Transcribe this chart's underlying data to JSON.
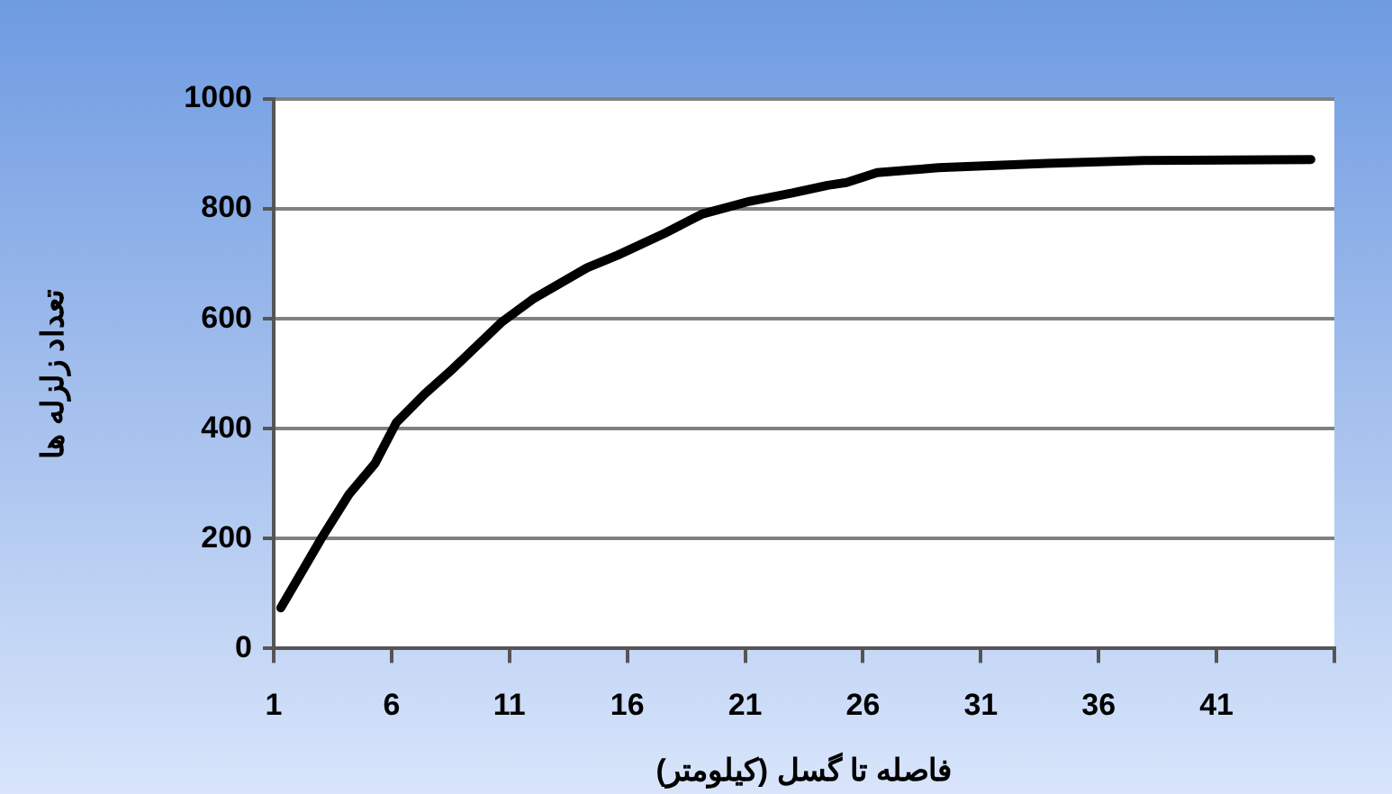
{
  "chart_data": {
    "type": "line",
    "xlabel": "فاصله تا گسل (کیلومتر)",
    "ylabel": "تعداد زلزله ها",
    "x": [
      1.3,
      3,
      4.2,
      5.3,
      6.2,
      7.4,
      8.6,
      10.7,
      12,
      14.3,
      15.6,
      17.6,
      19.2,
      21.2,
      23,
      24.5,
      25.3,
      26.6,
      29.2,
      33.8,
      37.9,
      45
    ],
    "series": [
      {
        "color": "#000000",
        "values": [
          74,
          199,
          281,
          337,
          411,
          463,
          509,
          595,
          636,
          693,
          716,
          756,
          791,
          814,
          829,
          843,
          848,
          866,
          875,
          883,
          888,
          890
        ]
      }
    ],
    "xlim": [
      1,
      46
    ],
    "xticks": [
      1,
      6,
      11,
      16,
      21,
      26,
      31,
      36,
      41,
      {
        "value": 46,
        "label": null
      }
    ],
    "ylim": [
      0,
      1000
    ],
    "yticks": [
      0,
      200,
      400,
      600,
      800,
      1000
    ],
    "grid": "y",
    "legend": false,
    "marker": "none",
    "line_style": "solid"
  }
}
